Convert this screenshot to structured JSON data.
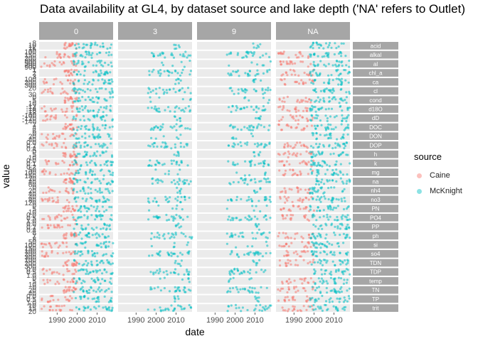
{
  "chart_data": {
    "type": "scatter",
    "title": "Data availability at GL4, by dataset source and lake depth ('NA' refers to Outlet)",
    "xlabel": "date",
    "ylabel": "value",
    "x_ticks": [
      "1990",
      "2000",
      "2010"
    ],
    "xlim": [
      1981,
      2018
    ],
    "facets_columns": [
      "0",
      "3",
      "9",
      "NA"
    ],
    "facet_rows": [
      {
        "label": "acid",
        "yticks": [
          "8",
          "10",
          "12",
          "15"
        ]
      },
      {
        "label": "alkal",
        "yticks": [
          "100",
          "150",
          "200"
        ]
      },
      {
        "label": "al",
        "yticks": [
          "300",
          "500",
          "700",
          "900"
        ]
      },
      {
        "label": "chl_a",
        "yticks": [
          "1",
          "2",
          "3"
        ]
      },
      {
        "label": "ca",
        "yticks": [
          "100",
          "200",
          "300"
        ]
      },
      {
        "label": "cl",
        "yticks": [
          "20",
          "30"
        ]
      },
      {
        "label": "cond",
        "yticks": [
          "0",
          "5",
          "10"
        ]
      },
      {
        "label": "d18O",
        "yticks": [
          "-12",
          "-14",
          "-16",
          "-18"
        ]
      },
      {
        "label": "dD",
        "yticks": [
          "-100",
          "-120",
          "-140"
        ]
      },
      {
        "label": "DOC",
        "yticks": [
          "2",
          "4",
          "6"
        ]
      },
      {
        "label": "DON",
        "yticks": [
          "0",
          "20",
          "40"
        ]
      },
      {
        "label": "DOP",
        "yticks": [
          "0.0",
          "0.2",
          "0.4"
        ]
      },
      {
        "label": "h",
        "yticks": [
          "0",
          "5",
          "10"
        ]
      },
      {
        "label": "k",
        "yticks": [
          "0.0",
          "0.1",
          "0.2"
        ]
      },
      {
        "label": "mg",
        "yticks": [
          "50",
          "100",
          "150"
        ]
      },
      {
        "label": "na",
        "yticks": [
          "20",
          "40",
          "60"
        ]
      },
      {
        "label": "nh4",
        "yticks": [
          "0",
          "20",
          "40"
        ]
      },
      {
        "label": "no3",
        "yticks": [
          "40",
          "80",
          "120"
        ]
      },
      {
        "label": "PN",
        "yticks": [
          "0",
          "5",
          "10"
        ]
      },
      {
        "label": "PO4",
        "yticks": [
          "0.0",
          "0.5",
          "1.0"
        ]
      },
      {
        "label": "PP",
        "yticks": [
          "0.0",
          "0.2",
          "0.4"
        ]
      },
      {
        "label": "ph",
        "yticks": [
          "6",
          "7",
          "8"
        ]
      },
      {
        "label": "si",
        "yticks": [
          "50",
          "100",
          "150"
        ]
      },
      {
        "label": "so4",
        "yticks": [
          "100",
          "200",
          "300"
        ]
      },
      {
        "label": "TDN",
        "yticks": [
          "100",
          "200",
          "300"
        ]
      },
      {
        "label": "TDP",
        "yticks": [
          "0.0",
          "0.5",
          "1.0"
        ]
      },
      {
        "label": "temp",
        "yticks": [
          "0",
          "5",
          "10"
        ]
      },
      {
        "label": "TN",
        "yticks": [
          "0",
          "20",
          "40"
        ]
      },
      {
        "label": "TP",
        "yticks": [
          "0.0",
          "0.5",
          "1.0"
        ]
      },
      {
        "label": "trit",
        "yticks": [
          "10",
          "15",
          "20"
        ]
      }
    ],
    "series": [
      {
        "name": "Caine",
        "color": "#F8766D"
      },
      {
        "name": "McKnight",
        "color": "#00BFC4"
      }
    ],
    "legend": {
      "title": "source",
      "position": "right"
    },
    "grid": true
  }
}
